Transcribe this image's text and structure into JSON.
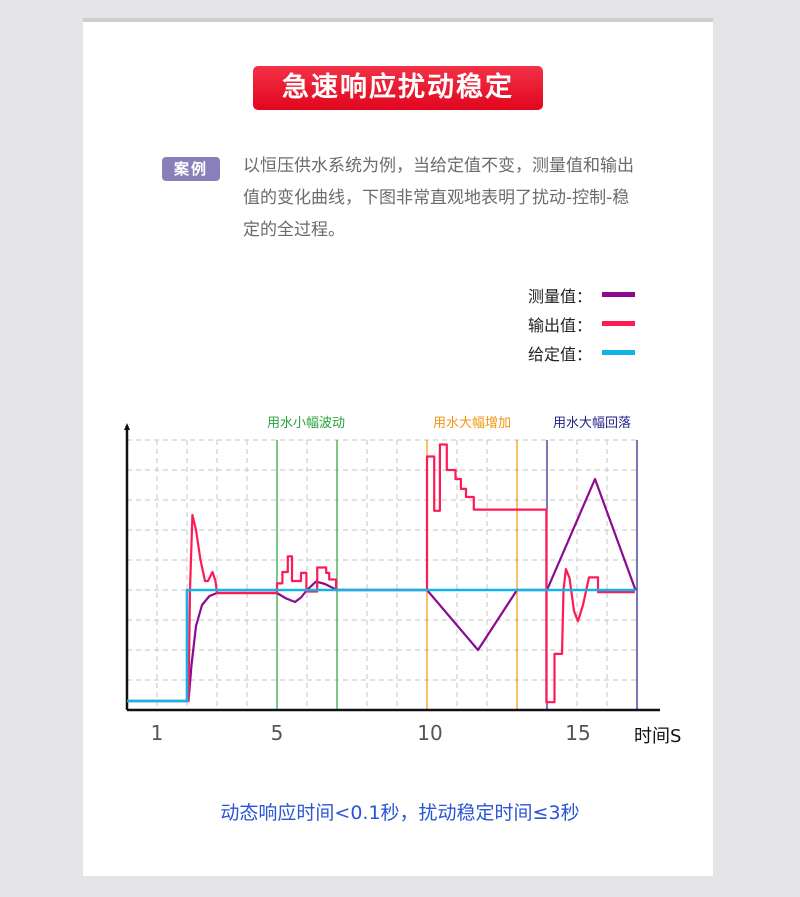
{
  "header": {
    "title": "急速响应扰动稳定"
  },
  "case": {
    "badge": "案例",
    "description": "以恒压供水系统为例，当给定值不变，测量值和输出值的变化曲线，下图非常直观地表明了扰动-控制-稳定的全过程。"
  },
  "chart_data": {
    "type": "line",
    "xlabel": "时间S",
    "ylabel": "",
    "x_ticks": [
      "1",
      "5",
      "10",
      "15"
    ],
    "x_tick_values": [
      1,
      5,
      10,
      15
    ],
    "xlim": [
      0,
      17.3
    ],
    "ylim": [
      0,
      9.3
    ],
    "grid": true,
    "legend_position": "top-right",
    "series": [
      {
        "name": "测量值：",
        "color": "#8b0a8e",
        "points": [
          [
            0,
            0.3
          ],
          [
            2.05,
            0.3
          ],
          [
            2.15,
            1.5
          ],
          [
            2.3,
            2.8
          ],
          [
            2.5,
            3.5
          ],
          [
            2.75,
            3.8
          ],
          [
            3,
            3.9
          ],
          [
            5,
            3.9
          ],
          [
            5.3,
            3.72
          ],
          [
            5.6,
            3.6
          ],
          [
            5.8,
            3.75
          ],
          [
            6.0,
            4.0
          ],
          [
            6.3,
            4.28
          ],
          [
            6.6,
            4.2
          ],
          [
            7,
            4
          ],
          [
            10,
            4
          ],
          [
            11.7,
            2
          ],
          [
            13,
            4
          ],
          [
            14,
            4
          ],
          [
            15.6,
            7.7
          ],
          [
            16.95,
            4
          ]
        ]
      },
      {
        "name": "输出值：",
        "color": "#ff1a55",
        "points": [
          [
            0,
            0.3
          ],
          [
            2.05,
            0.3
          ],
          [
            2.1,
            4
          ],
          [
            2.18,
            6.5
          ],
          [
            2.3,
            6.0
          ],
          [
            2.45,
            5
          ],
          [
            2.6,
            4.3
          ],
          [
            2.7,
            4.3
          ],
          [
            2.85,
            4.6
          ],
          [
            2.95,
            4.3
          ],
          [
            3,
            3.9
          ],
          [
            5,
            3.9
          ],
          [
            5,
            4.22
          ],
          [
            5.18,
            4.22
          ],
          [
            5.18,
            4.6
          ],
          [
            5.36,
            4.6
          ],
          [
            5.36,
            5.12
          ],
          [
            5.5,
            5.12
          ],
          [
            5.5,
            4.3
          ],
          [
            5.8,
            4.3
          ],
          [
            5.8,
            4.57
          ],
          [
            5.98,
            4.57
          ],
          [
            5.98,
            3.95
          ],
          [
            6.34,
            3.95
          ],
          [
            6.34,
            4.75
          ],
          [
            6.64,
            4.75
          ],
          [
            6.64,
            4.57
          ],
          [
            6.74,
            4.57
          ],
          [
            6.74,
            4.35
          ],
          [
            6.97,
            4.35
          ],
          [
            6.97,
            4.0
          ],
          [
            10,
            4
          ],
          [
            10,
            8.45
          ],
          [
            10.24,
            8.45
          ],
          [
            10.24,
            6.64
          ],
          [
            10.43,
            6.64
          ],
          [
            10.43,
            8.85
          ],
          [
            10.66,
            8.85
          ],
          [
            10.66,
            8.0
          ],
          [
            10.95,
            8.0
          ],
          [
            10.95,
            7.7
          ],
          [
            11.13,
            7.7
          ],
          [
            11.13,
            7.37
          ],
          [
            11.3,
            7.37
          ],
          [
            11.3,
            7.1
          ],
          [
            11.56,
            7.1
          ],
          [
            11.56,
            6.68
          ],
          [
            13.98,
            6.68
          ],
          [
            13.98,
            0.26
          ],
          [
            14.25,
            0.26
          ],
          [
            14.25,
            1.87
          ],
          [
            14.5,
            1.87
          ],
          [
            14.55,
            4.0
          ],
          [
            14.63,
            4.7
          ],
          [
            14.75,
            4.4
          ],
          [
            14.9,
            3.3
          ],
          [
            15.03,
            2.96
          ],
          [
            15.2,
            3.5
          ],
          [
            15.4,
            4.42
          ],
          [
            15.7,
            4.42
          ],
          [
            15.7,
            3.93
          ],
          [
            16.93,
            3.93
          ]
        ]
      },
      {
        "name": "给定值：",
        "color": "#12b4e8",
        "points": [
          [
            0,
            0.3
          ],
          [
            2,
            0.3
          ],
          [
            2,
            4
          ],
          [
            16.95,
            4
          ]
        ]
      }
    ],
    "regions": [
      {
        "label": "用水小幅波动",
        "start": 5,
        "end": 7,
        "color": "#27a23a"
      },
      {
        "label": "用水大幅增加",
        "start": 10,
        "end": 13,
        "color": "#f0960f"
      },
      {
        "label": "用水大幅回落",
        "start": 14,
        "end": 17,
        "color": "#1f1f86"
      }
    ]
  },
  "footer": {
    "text": "动态响应时间<0.1秒，扰动稳定时间≤3秒"
  }
}
